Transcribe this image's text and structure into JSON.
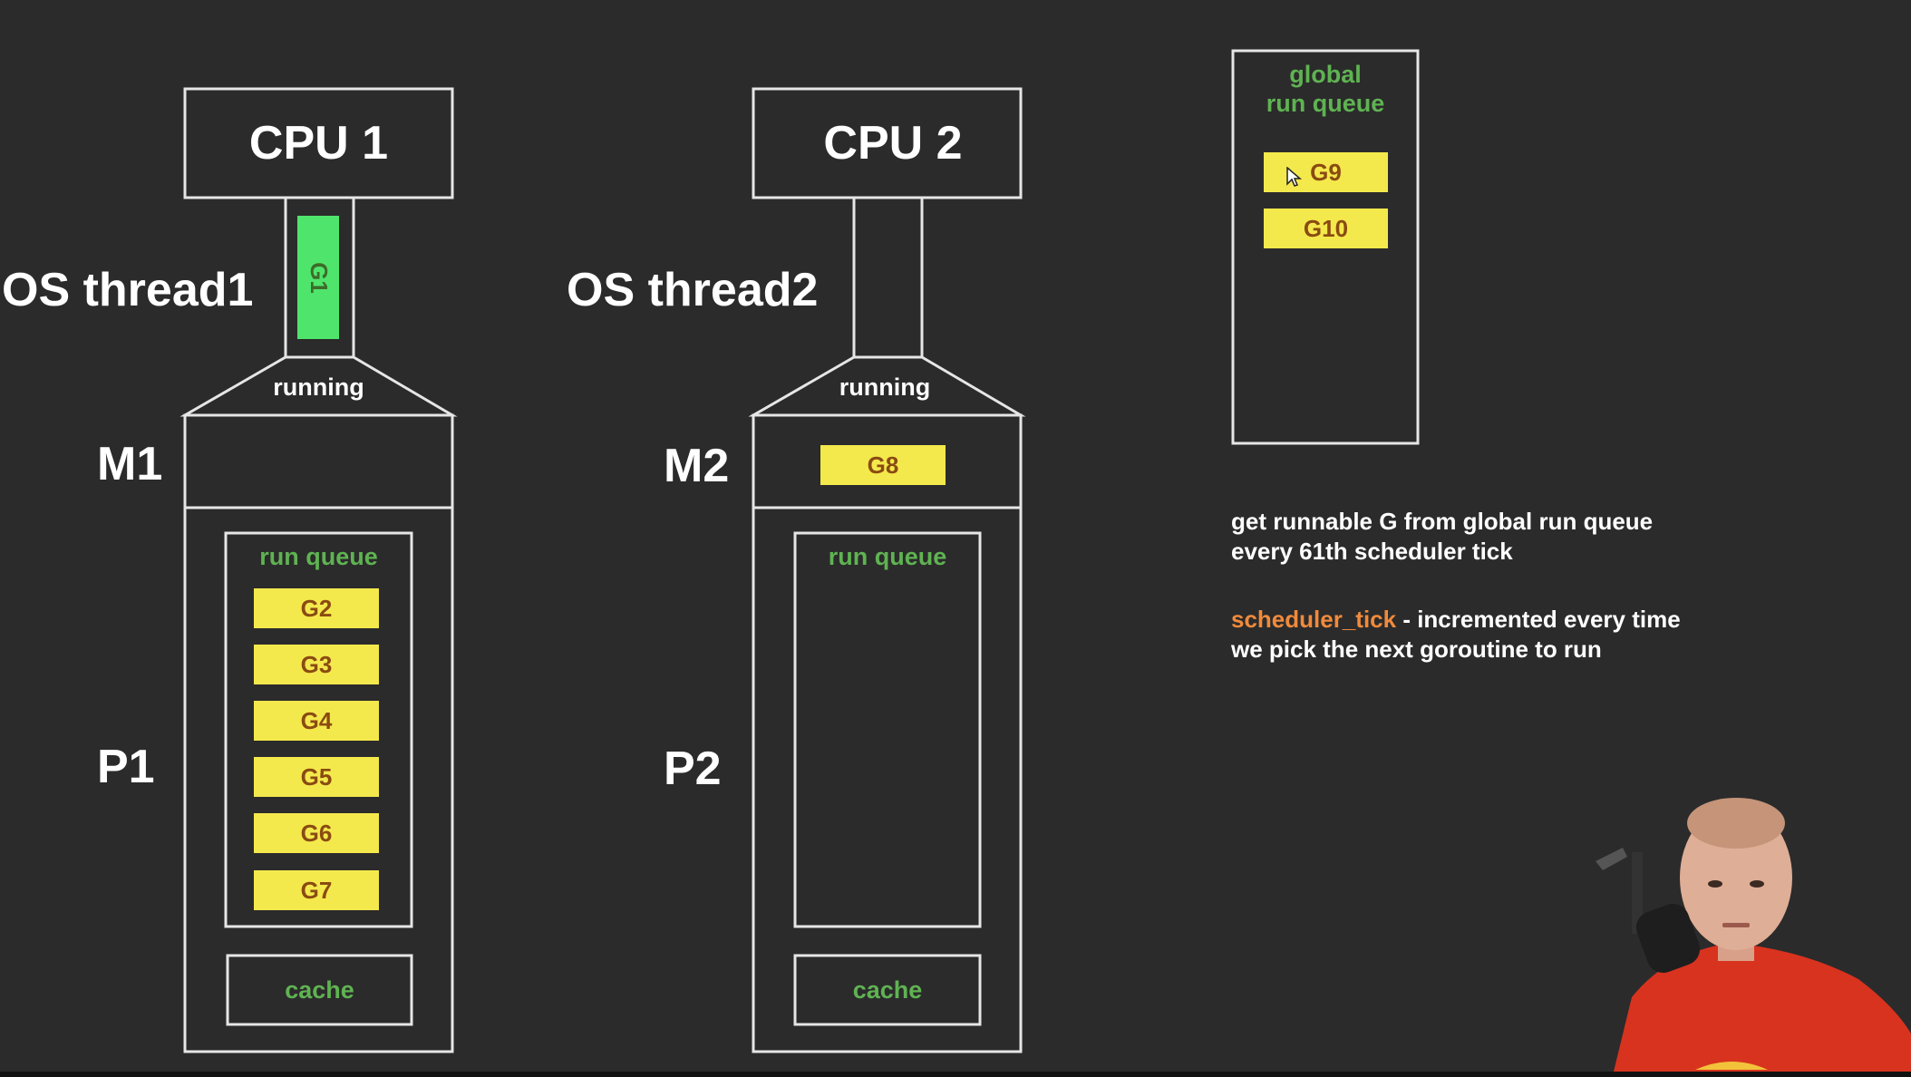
{
  "cpus": [
    {
      "cpu_label": "CPU 1",
      "os_thread_label": "OS thread1",
      "running_goroutine": "G1",
      "running_label": "running",
      "m_label": "M1",
      "m_goroutine": "",
      "p_label": "P1",
      "run_queue_label": "run queue",
      "run_queue": [
        "G2",
        "G3",
        "G4",
        "G5",
        "G6",
        "G7"
      ],
      "cache_label": "cache"
    },
    {
      "cpu_label": "CPU 2",
      "os_thread_label": "OS thread2",
      "running_goroutine": "",
      "running_label": "running",
      "m_label": "M2",
      "m_goroutine": "G8",
      "p_label": "P2",
      "run_queue_label": "run queue",
      "run_queue": [],
      "cache_label": "cache"
    }
  ],
  "global_queue": {
    "title_line1": "global",
    "title_line2": "run queue",
    "items": [
      "G9",
      "G10"
    ]
  },
  "notes": {
    "line1": "get runnable G from global run queue",
    "line2": "every 61th scheduler tick",
    "term": "scheduler_tick",
    "term_rest": " - incremented every time",
    "line4": "we pick the next goroutine to run"
  },
  "colors": {
    "background": "#2b2b2b",
    "outline": "#e6e6e6",
    "goroutine_fill": "#f4e94c",
    "goroutine_text": "#8a4b12",
    "running_goroutine_fill": "#4fe56c",
    "green_label": "#5fb352",
    "highlight": "#f08a3c"
  },
  "icons": {
    "cursor": "mouse-pointer-icon",
    "presenter": "webcam-presenter-overlay"
  }
}
